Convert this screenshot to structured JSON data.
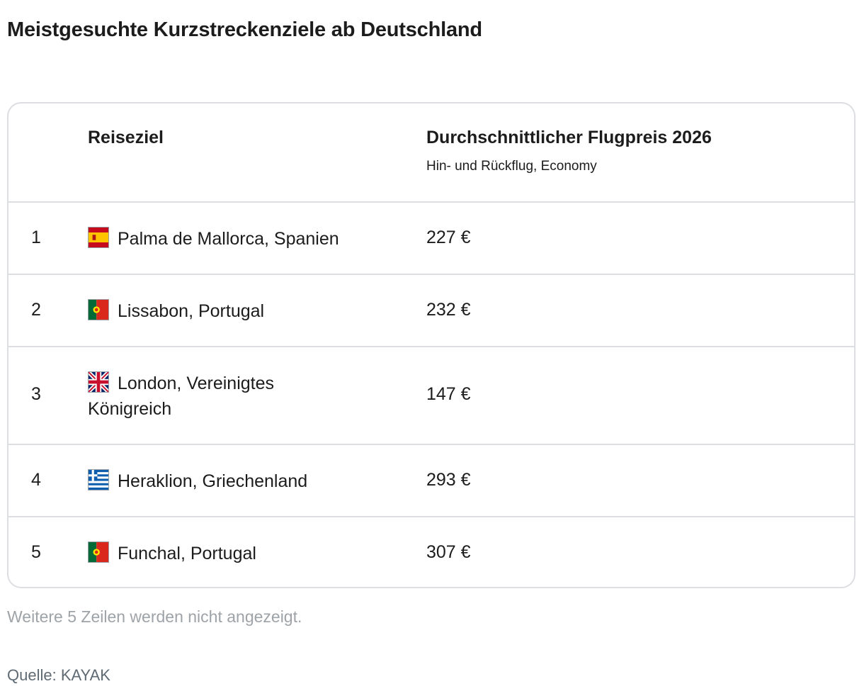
{
  "title": "Meistgesuchte Kurzstreckenziele ab Deutschland",
  "table": {
    "columns": {
      "destination": "Reiseziel",
      "price": "Durchschnittlicher Flugpreis 2026",
      "price_sub": "Hin- und Rückflug, Economy"
    },
    "rows": [
      {
        "rank": "1",
        "flag": "spain-flag-icon",
        "destination": "Palma de Mallorca, Spanien",
        "price": "227 €"
      },
      {
        "rank": "2",
        "flag": "portugal-flag-icon",
        "destination": "Lissabon, Portugal",
        "price": "232 €"
      },
      {
        "rank": "3",
        "flag": "uk-flag-icon",
        "destination": "London, Vereinigtes Königreich",
        "price": "147 €"
      },
      {
        "rank": "4",
        "flag": "greece-flag-icon",
        "destination": "Heraklion, Griechenland",
        "price": "293 €"
      },
      {
        "rank": "5",
        "flag": "portugal-flag-icon",
        "destination": "Funchal, Portugal",
        "price": "307 €"
      }
    ]
  },
  "note": "Weitere 5 Zeilen werden nicht angezeigt.",
  "source": "Quelle: KAYAK",
  "colors": {
    "border": "#dcdee1",
    "note_text": "#9ea3a8",
    "source_text": "#5f6a73"
  }
}
